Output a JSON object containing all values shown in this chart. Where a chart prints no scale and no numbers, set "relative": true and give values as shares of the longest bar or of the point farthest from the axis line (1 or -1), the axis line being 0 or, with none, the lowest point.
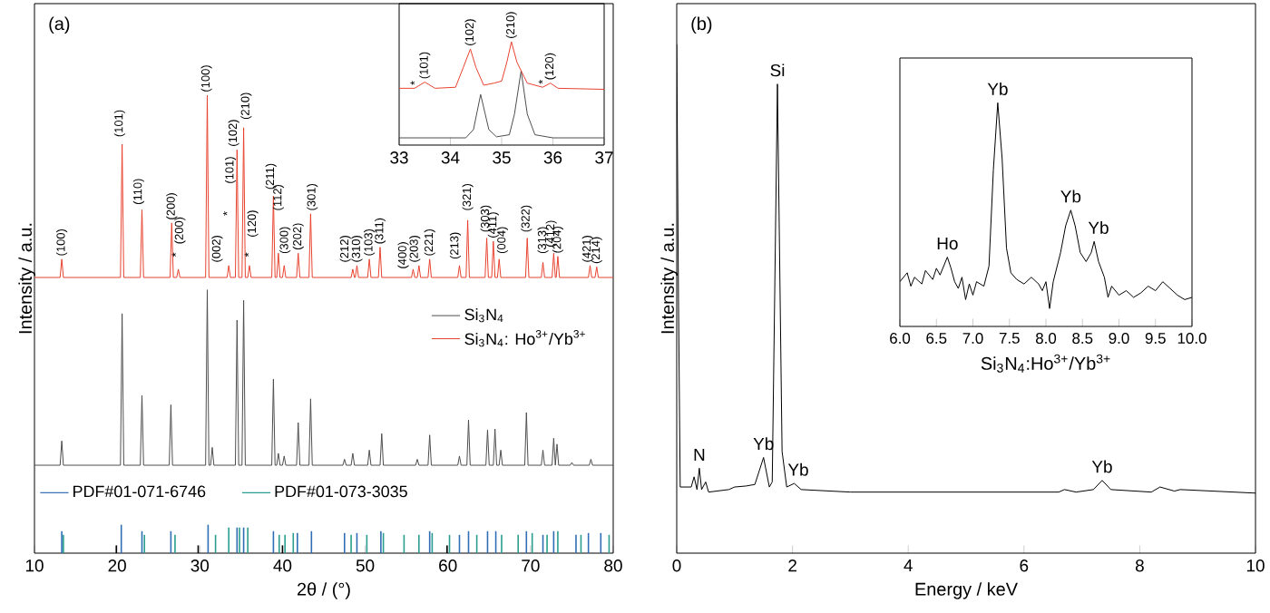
{
  "chart_data": [
    {
      "type": "line",
      "xlim": [
        10,
        80
      ],
      "xticks": [
        10,
        20,
        30,
        40,
        50,
        60,
        70,
        80
      ],
      "xlabel": "2θ / (°)",
      "ylabel": "Intensity / a.u.",
      "relative": true,
      "legend": "right",
      "series": [
        {
          "name": "Si$_{3}$N$_{4}$",
          "color": "#4d4d4d",
          "x": [
            10,
            13.1,
            13.3,
            13.5,
            20.4,
            20.6,
            20.8,
            22.8,
            23.0,
            23.2,
            26.3,
            26.5,
            26.7,
            30.7,
            30.9,
            31.1,
            31.3,
            31.5,
            31.7,
            34.3,
            34.5,
            34.7,
            35.1,
            35.3,
            35.5,
            38.7,
            38.9,
            39.1,
            39.3,
            39.5,
            39.7,
            40.0,
            40.2,
            40.4,
            41.7,
            41.9,
            42.1,
            43.2,
            43.4,
            43.6,
            47.3,
            47.5,
            47.7,
            48.3,
            48.5,
            48.7,
            50.3,
            50.5,
            50.7,
            51.8,
            52.0,
            52.2,
            56.1,
            56.3,
            56.5,
            57.6,
            57.8,
            58.0,
            61.2,
            61.4,
            61.6,
            62.3,
            62.5,
            62.7,
            64.6,
            64.8,
            65.0,
            65.5,
            65.7,
            65.9,
            66.2,
            66.4,
            66.6,
            69.3,
            69.5,
            69.7,
            71.3,
            71.5,
            71.7,
            72.6,
            72.8,
            73.0,
            73.2,
            73.4,
            74.8,
            75.0,
            75.2,
            77.1,
            77.3,
            77.5,
            80
          ],
          "values": [
            0.192,
            0.192,
            0.245,
            0.192,
            0.192,
            0.523,
            0.192,
            0.192,
            0.344,
            0.192,
            0.192,
            0.324,
            0.192,
            0.192,
            0.575,
            0.192,
            0.192,
            0.231,
            0.192,
            0.192,
            0.509,
            0.192,
            0.192,
            0.552,
            0.192,
            0.192,
            0.38,
            0.192,
            0.192,
            0.218,
            0.192,
            0.192,
            0.212,
            0.192,
            0.192,
            0.285,
            0.192,
            0.192,
            0.337,
            0.192,
            0.192,
            0.205,
            0.192,
            0.192,
            0.218,
            0.192,
            0.192,
            0.225,
            0.192,
            0.192,
            0.261,
            0.192,
            0.192,
            0.205,
            0.192,
            0.192,
            0.258,
            0.192,
            0.192,
            0.212,
            0.192,
            0.192,
            0.291,
            0.192,
            0.192,
            0.269,
            0.192,
            0.192,
            0.271,
            0.192,
            0.192,
            0.225,
            0.192,
            0.192,
            0.307,
            0.192,
            0.192,
            0.225,
            0.192,
            0.192,
            0.251,
            0.192,
            0.238,
            0.192,
            0.192,
            0.198,
            0.192,
            0.192,
            0.205,
            0.192,
            0.192
          ]
        },
        {
          "name": "Si$_{3}$N$_{4}$: Ho$^{3+}$/Yb$^{3+}$",
          "color": "#e8412e",
          "x": [
            10,
            13.1,
            13.3,
            13.5,
            20.4,
            20.6,
            20.8,
            22.8,
            23.0,
            23.2,
            26.4,
            26.6,
            26.8,
            27.2,
            27.4,
            27.6,
            30.7,
            30.9,
            31.1,
            33.3,
            33.5,
            33.7,
            34.3,
            34.5,
            34.7,
            35.1,
            35.3,
            35.5,
            35.8,
            36.0,
            36.2,
            38.7,
            38.9,
            39.1,
            39.3,
            39.5,
            39.7,
            40.0,
            40.2,
            40.4,
            41.7,
            41.9,
            42.1,
            43.2,
            43.4,
            43.6,
            48.3,
            48.5,
            48.7,
            48.8,
            49.0,
            49.2,
            50.3,
            50.5,
            50.7,
            51.6,
            51.8,
            52.0,
            55.6,
            55.8,
            56.0,
            56.3,
            56.5,
            56.7,
            57.6,
            57.8,
            58.0,
            61.2,
            61.4,
            61.6,
            62.2,
            62.4,
            62.6,
            64.5,
            64.7,
            64.9,
            65.3,
            65.5,
            65.7,
            66.0,
            66.2,
            66.4,
            69.4,
            69.6,
            69.8,
            71.3,
            71.5,
            71.7,
            72.6,
            72.8,
            73.0,
            73.1,
            73.3,
            73.5,
            77.0,
            77.2,
            77.4,
            77.8,
            78.0,
            78.2,
            80
          ],
          "values": [
            0.602,
            0.602,
            0.642,
            0.602,
            0.602,
            0.893,
            0.602,
            0.602,
            0.75,
            0.602,
            0.602,
            0.721,
            0.602,
            0.602,
            0.62,
            0.602,
            0.602,
            1.0,
            0.602,
            0.602,
            0.628,
            0.602,
            0.602,
            0.881,
            0.602,
            0.602,
            0.929,
            0.602,
            0.602,
            0.628,
            0.602,
            0.602,
            0.78,
            0.602,
            0.602,
            0.655,
            0.602,
            0.602,
            0.628,
            0.602,
            0.602,
            0.655,
            0.602,
            0.602,
            0.741,
            0.602,
            0.602,
            0.62,
            0.602,
            0.602,
            0.628,
            0.602,
            0.602,
            0.642,
            0.602,
            0.602,
            0.668,
            0.602,
            0.602,
            0.62,
            0.602,
            0.602,
            0.628,
            0.602,
            0.602,
            0.642,
            0.602,
            0.602,
            0.628,
            0.602,
            0.602,
            0.727,
            0.602,
            0.602,
            0.688,
            0.602,
            0.602,
            0.681,
            0.602,
            0.602,
            0.642,
            0.602,
            0.602,
            0.688,
            0.602,
            0.602,
            0.635,
            0.602,
            0.602,
            0.655,
            0.602,
            0.602,
            0.648,
            0.602,
            0.602,
            0.628,
            0.602,
            0.602,
            0.625,
            0.602,
            0.602
          ]
        },
        {
          "name": "PDF#01-071-6746",
          "type": "bar",
          "color": "#2f6db5",
          "x": [
            13.3,
            20.5,
            23.0,
            26.5,
            31.0,
            34.5,
            35.3,
            38.9,
            41.8,
            43.5,
            47.5,
            49.0,
            51.9,
            57.8,
            61.4,
            62.5,
            64.8,
            65.8,
            69.5,
            71.5,
            72.8,
            75.5,
            77.0,
            78.5
          ],
          "values": [
            0.048,
            0.062,
            0.048,
            0.048,
            0.062,
            0.056,
            0.056,
            0.048,
            0.044,
            0.048,
            0.044,
            0.044,
            0.048,
            0.048,
            0.04,
            0.048,
            0.048,
            0.048,
            0.048,
            0.04,
            0.048,
            0.04,
            0.044,
            0.044
          ]
        },
        {
          "name": "PDF#01-073-3035",
          "type": "bar",
          "color": "#2a9d8f",
          "x": [
            13.5,
            23.3,
            27.0,
            31.9,
            33.5,
            34.8,
            35.8,
            39.6,
            40.3,
            41.3,
            48.3,
            50.2,
            52.2,
            54.7,
            56.5,
            58.1,
            60.2,
            63.5,
            66.5,
            68.5,
            70.2,
            72.0,
            73.3,
            76.1,
            79.5
          ],
          "values": [
            0.04,
            0.04,
            0.04,
            0.04,
            0.056,
            0.056,
            0.056,
            0.04,
            0.04,
            0.044,
            0.04,
            0.04,
            0.044,
            0.04,
            0.04,
            0.044,
            0.04,
            0.04,
            0.04,
            0.04,
            0.044,
            0.04,
            0.048,
            0.04,
            0.04
          ]
        },
        {
          "type": "bar",
          "color": "#000000",
          "x": [
            19.9,
            29.8,
            40.0,
            59.9
          ],
          "values": [
            0.017,
            0.017,
            0.017,
            0.017
          ]
        }
      ],
      "annotations": [
        "(a)",
        {
          "text": "(100)",
          "x": 13.3,
          "y": 0.642
        },
        {
          "text": "(101)",
          "x": 20.3,
          "y": 0.902
        },
        {
          "text": "(110)",
          "x": 22.6,
          "y": 0.754
        },
        {
          "text": "(200)",
          "x": 26.6,
          "y": 0.721
        },
        {
          "text": "*",
          "x": 27.1,
          "y": 0.64
        },
        {
          "text": "(200)",
          "x": 27.6,
          "y": 0.668
        },
        {
          "text": "(100)",
          "x": 30.8,
          "y": 1.0
        },
        {
          "text": "(002)",
          "x": 32.1,
          "y": 0.628
        },
        {
          "text": "*",
          "x": 33.3,
          "y": 0.73
        },
        {
          "text": "(101)",
          "x": 33.7,
          "y": 0.8
        },
        {
          "text": "(102)",
          "x": 34.1,
          "y": 0.881
        },
        {
          "text": "(210)",
          "x": 35.6,
          "y": 0.94
        },
        {
          "text": "*",
          "x": 35.9,
          "y": 0.64
        },
        {
          "text": "(120)",
          "x": 36.4,
          "y": 0.683
        },
        {
          "text": "(211)",
          "x": 38.6,
          "y": 0.787
        },
        {
          "text": "(112)",
          "x": 39.5,
          "y": 0.741
        },
        {
          "text": "(300)",
          "x": 40.3,
          "y": 0.647
        },
        {
          "text": "(202)",
          "x": 41.9,
          "y": 0.655
        },
        {
          "text": "(301)",
          "x": 43.6,
          "y": 0.741
        },
        {
          "text": "(212)",
          "x": 47.6,
          "y": 0.628
        },
        {
          "text": "(310)",
          "x": 49.0,
          "y": 0.628
        },
        {
          "text": "(103)",
          "x": 50.5,
          "y": 0.642
        },
        {
          "text": "(311)",
          "x": 51.8,
          "y": 0.668
        },
        {
          "text": "(400)",
          "x": 54.6,
          "y": 0.614
        },
        {
          "text": "(203)",
          "x": 56.0,
          "y": 0.628
        },
        {
          "text": "(221)",
          "x": 57.8,
          "y": 0.642
        },
        {
          "text": "(213)",
          "x": 60.9,
          "y": 0.635
        },
        {
          "text": "(321)",
          "x": 62.4,
          "y": 0.741
        },
        {
          "text": "(303)",
          "x": 64.6,
          "y": 0.694
        },
        {
          "text": "(411)",
          "x": 65.5,
          "y": 0.681
        },
        {
          "text": "(004)",
          "x": 66.6,
          "y": 0.647
        },
        {
          "text": "(322)",
          "x": 69.5,
          "y": 0.694
        },
        {
          "text": "(313)",
          "x": 71.5,
          "y": 0.647
        },
        {
          "text": "(412)",
          "x": 72.5,
          "y": 0.661
        },
        {
          "text": "(204)",
          "x": 73.3,
          "y": 0.648
        },
        {
          "text": "(421)",
          "x": 76.9,
          "y": 0.628
        },
        {
          "text": "(214)",
          "x": 78.0,
          "y": 0.625
        }
      ]
    },
    {
      "type": "line",
      "xlim": [
        33,
        37
      ],
      "xticks": [
        33,
        34,
        35,
        36,
        37
      ],
      "relative": true,
      "series": [
        {
          "color": "#4d4d4d",
          "x": [
            33,
            34.3,
            34.45,
            34.59,
            34.75,
            34.9,
            35.15,
            35.25,
            35.38,
            35.5,
            35.65,
            36,
            37
          ],
          "values": [
            0.07,
            0.07,
            0.15,
            0.49,
            0.15,
            0.08,
            0.1,
            0.3,
            0.72,
            0.3,
            0.1,
            0.07,
            0.07
          ]
        },
        {
          "color": "#e8412e",
          "x": [
            33,
            33.3,
            33.5,
            33.7,
            34.1,
            34.25,
            34.39,
            34.5,
            34.65,
            34.85,
            35.0,
            35.1,
            35.19,
            35.3,
            35.5,
            35.8,
            35.95,
            36.1,
            37
          ],
          "values": [
            0.55,
            0.55,
            0.61,
            0.55,
            0.56,
            0.75,
            0.93,
            0.75,
            0.58,
            0.6,
            0.62,
            0.8,
            1.0,
            0.8,
            0.6,
            0.56,
            0.6,
            0.55,
            0.54
          ]
        }
      ],
      "annotations": [
        {
          "text": "*",
          "x": 33.3,
          "y": 0.55
        },
        {
          "text": "(101)",
          "x": 33.5,
          "y": 0.61
        },
        {
          "text": "(102)",
          "x": 34.39,
          "y": 0.93
        },
        {
          "text": "(210)",
          "x": 35.19,
          "y": 1.0
        },
        {
          "text": "*",
          "x": 35.8,
          "y": 0.56
        },
        {
          "text": "(120)",
          "x": 35.95,
          "y": 0.6
        }
      ]
    },
    {
      "type": "line",
      "xlim": [
        0,
        10
      ],
      "xticks": [
        0,
        2,
        4,
        6,
        8,
        10
      ],
      "xlabel": "Energy / keV",
      "ylabel": "Intensity / a.u.",
      "relative": true,
      "series": [
        {
          "color": "#000000",
          "x": [
            0,
            0.03,
            0.06,
            0.25,
            0.3,
            0.35,
            0.39,
            0.43,
            0.5,
            0.55,
            0.9,
            1.0,
            1.2,
            1.35,
            1.5,
            1.6,
            1.65,
            1.74,
            1.82,
            1.9,
            2.03,
            2.15,
            3,
            6.6,
            6.7,
            6.9,
            7.2,
            7.35,
            7.5,
            8.2,
            8.35,
            8.6,
            8.7,
            10
          ],
          "values": [
            1.0,
            0.5,
            0.13,
            0.13,
            0.15,
            0.125,
            0.167,
            0.125,
            0.14,
            0.12,
            0.125,
            0.13,
            0.132,
            0.135,
            0.188,
            0.13,
            0.14,
            0.922,
            0.2,
            0.13,
            0.137,
            0.125,
            0.12,
            0.12,
            0.125,
            0.12,
            0.125,
            0.143,
            0.125,
            0.12,
            0.13,
            0.122,
            0.125,
            0.118
          ]
        }
      ],
      "annotations": [
        "(b)",
        {
          "text": "N",
          "x": 0.39,
          "y": 0.167
        },
        {
          "text": "Yb",
          "x": 1.5,
          "y": 0.188
        },
        {
          "text": "Si",
          "x": 1.74,
          "y": 0.922
        },
        {
          "text": "Yb",
          "x": 2.1,
          "y": 0.137
        },
        {
          "text": "Yb",
          "x": 7.35,
          "y": 0.143
        }
      ]
    },
    {
      "type": "line",
      "xlim": [
        6,
        10
      ],
      "xticks": [
        {
          "value": 6,
          "label": "6.0"
        },
        {
          "value": 6.5,
          "label": "6.5"
        },
        {
          "value": 7,
          "label": "7.0"
        },
        {
          "value": 7.5,
          "label": "7.5"
        },
        {
          "value": 8,
          "label": "8.0"
        },
        {
          "value": 8.5,
          "label": "8.5"
        },
        {
          "value": 9,
          "label": "9.0"
        },
        {
          "value": 9.5,
          "label": "9.5"
        },
        {
          "value": 10,
          "label": "10.0"
        }
      ],
      "xlabel": "Si$_{3}$N$_{4}$:Ho$^{3+}$/Yb$^{3+}$",
      "relative": true,
      "series": [
        {
          "color": "#000000",
          "x": [
            6.0,
            6.1,
            6.15,
            6.2,
            6.3,
            6.35,
            6.45,
            6.5,
            6.55,
            6.65,
            6.7,
            6.75,
            6.8,
            6.85,
            6.9,
            6.95,
            7.0,
            7.05,
            7.15,
            7.22,
            7.28,
            7.34,
            7.4,
            7.46,
            7.52,
            7.6,
            7.7,
            7.8,
            7.9,
            7.95,
            8.0,
            8.05,
            8.1,
            8.2,
            8.27,
            8.34,
            8.4,
            8.47,
            8.55,
            8.62,
            8.66,
            8.72,
            8.8,
            8.85,
            8.9,
            9.0,
            9.1,
            9.2,
            9.3,
            9.4,
            9.5,
            9.6,
            9.7,
            9.8,
            9.9,
            10.0
          ],
          "values": [
            0.2,
            0.24,
            0.18,
            0.22,
            0.19,
            0.25,
            0.21,
            0.26,
            0.23,
            0.31,
            0.26,
            0.2,
            0.17,
            0.22,
            0.12,
            0.19,
            0.14,
            0.2,
            0.18,
            0.27,
            0.7,
            1.0,
            0.75,
            0.35,
            0.24,
            0.21,
            0.19,
            0.22,
            0.19,
            0.16,
            0.2,
            0.08,
            0.2,
            0.33,
            0.45,
            0.52,
            0.45,
            0.33,
            0.29,
            0.33,
            0.38,
            0.29,
            0.22,
            0.13,
            0.18,
            0.14,
            0.16,
            0.13,
            0.15,
            0.18,
            0.16,
            0.2,
            0.17,
            0.14,
            0.12,
            0.13
          ]
        }
      ],
      "annotations": [
        {
          "text": "Ho",
          "x": 6.65,
          "y": 0.31
        },
        {
          "text": "Yb",
          "x": 7.34,
          "y": 1.0
        },
        {
          "text": "Yb",
          "x": 8.34,
          "y": 0.52
        },
        {
          "text": "Yb",
          "x": 8.72,
          "y": 0.38
        }
      ]
    }
  ]
}
